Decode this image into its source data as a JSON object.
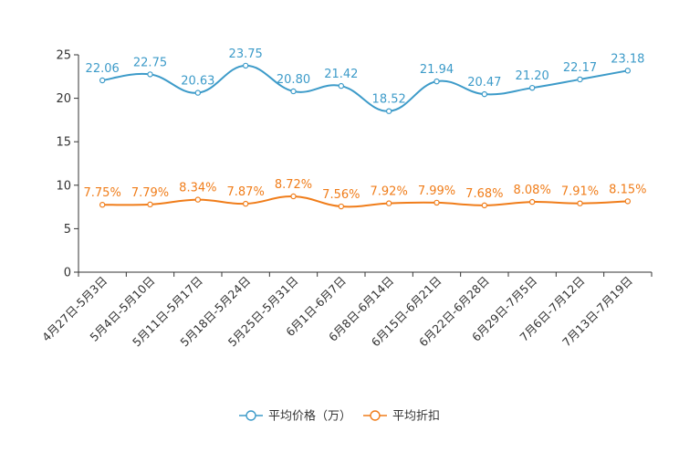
{
  "chart_data": {
    "type": "line",
    "categories": [
      "4月27日-5月3日",
      "5月4日-5月10日",
      "5月11日-5月17日",
      "5月18日-5月24日",
      "5月25日-5月31日",
      "6月1日-6月7日",
      "6月8日-6月14日",
      "6月15日-6月21日",
      "6月22日-6月28日",
      "6月29日-7月5日",
      "7月6日-7月12日",
      "7月13日-7月19日"
    ],
    "ylim": [
      0,
      25
    ],
    "yticks": [
      "0",
      "5",
      "10",
      "15",
      "20",
      "25"
    ],
    "series": [
      {
        "name": "平均价格（万）",
        "color": "#3d9bc9",
        "values": [
          22.06,
          22.75,
          20.63,
          23.75,
          20.8,
          21.42,
          18.52,
          21.94,
          20.47,
          21.2,
          22.17,
          23.18
        ],
        "labels": [
          "22.06",
          "22.75",
          "20.63",
          "23.75",
          "20.80",
          "21.42",
          "18.52",
          "21.94",
          "20.47",
          "21.20",
          "22.17",
          "23.18"
        ]
      },
      {
        "name": "平均折扣",
        "color": "#f07d1a",
        "values": [
          7.75,
          7.79,
          8.34,
          7.87,
          8.72,
          7.56,
          7.92,
          7.99,
          7.68,
          8.08,
          7.91,
          8.15
        ],
        "labels": [
          "7.75%",
          "7.79%",
          "8.34%",
          "7.87%",
          "8.72%",
          "7.56%",
          "7.92%",
          "7.99%",
          "7.68%",
          "8.08%",
          "7.91%",
          "8.15%"
        ]
      }
    ],
    "legend_position": "bottom-center"
  }
}
